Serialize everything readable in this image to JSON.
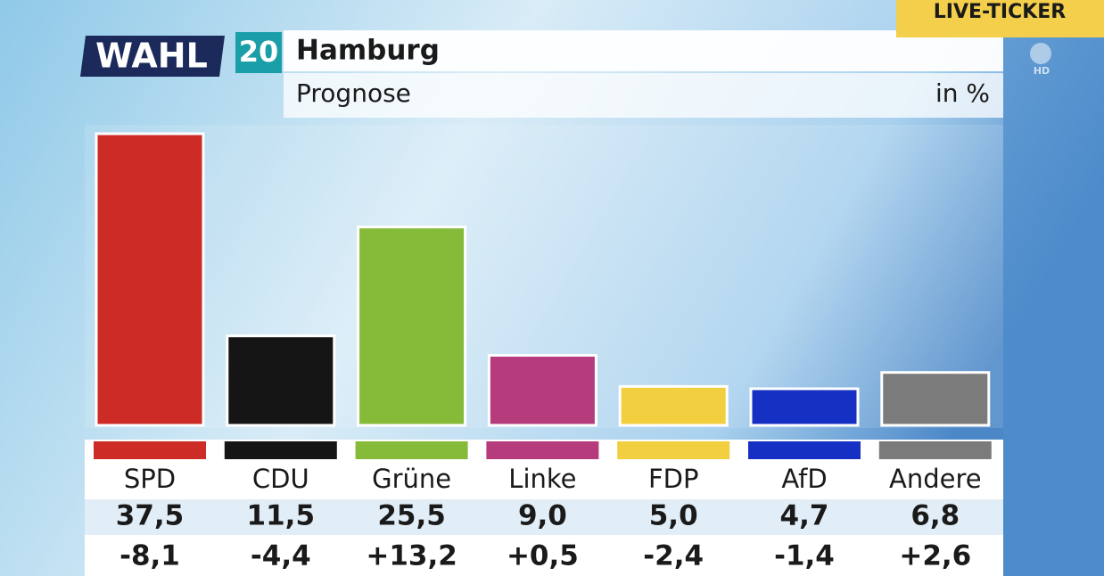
{
  "header": {
    "logo": "WAHL",
    "year": "20",
    "title": "Hamburg",
    "subtitle": "Prognose",
    "unit": "in %",
    "ticker": "LIVE-TICKER",
    "channel": "HD"
  },
  "chart_data": {
    "type": "bar",
    "categories": [
      "SPD",
      "CDU",
      "Grüne",
      "Linke",
      "FDP",
      "AfD",
      "Andere"
    ],
    "values": [
      37.5,
      11.5,
      25.5,
      9.0,
      5.0,
      4.7,
      6.8
    ],
    "value_labels": [
      "37,5",
      "11,5",
      "25,5",
      "9,0",
      "5,0",
      "4,7",
      "6,8"
    ],
    "changes": [
      -8.1,
      -4.4,
      13.2,
      0.5,
      -2.4,
      -1.4,
      2.6
    ],
    "change_labels": [
      "-8,1",
      "-4,4",
      "+13,2",
      "+0,5",
      "-2,4",
      "-1,4",
      "+2,6"
    ],
    "colors": [
      "#cc2b26",
      "#151515",
      "#86bb3a",
      "#b53b7d",
      "#f2cf3f",
      "#1630c4",
      "#7b7b7b"
    ]
  }
}
